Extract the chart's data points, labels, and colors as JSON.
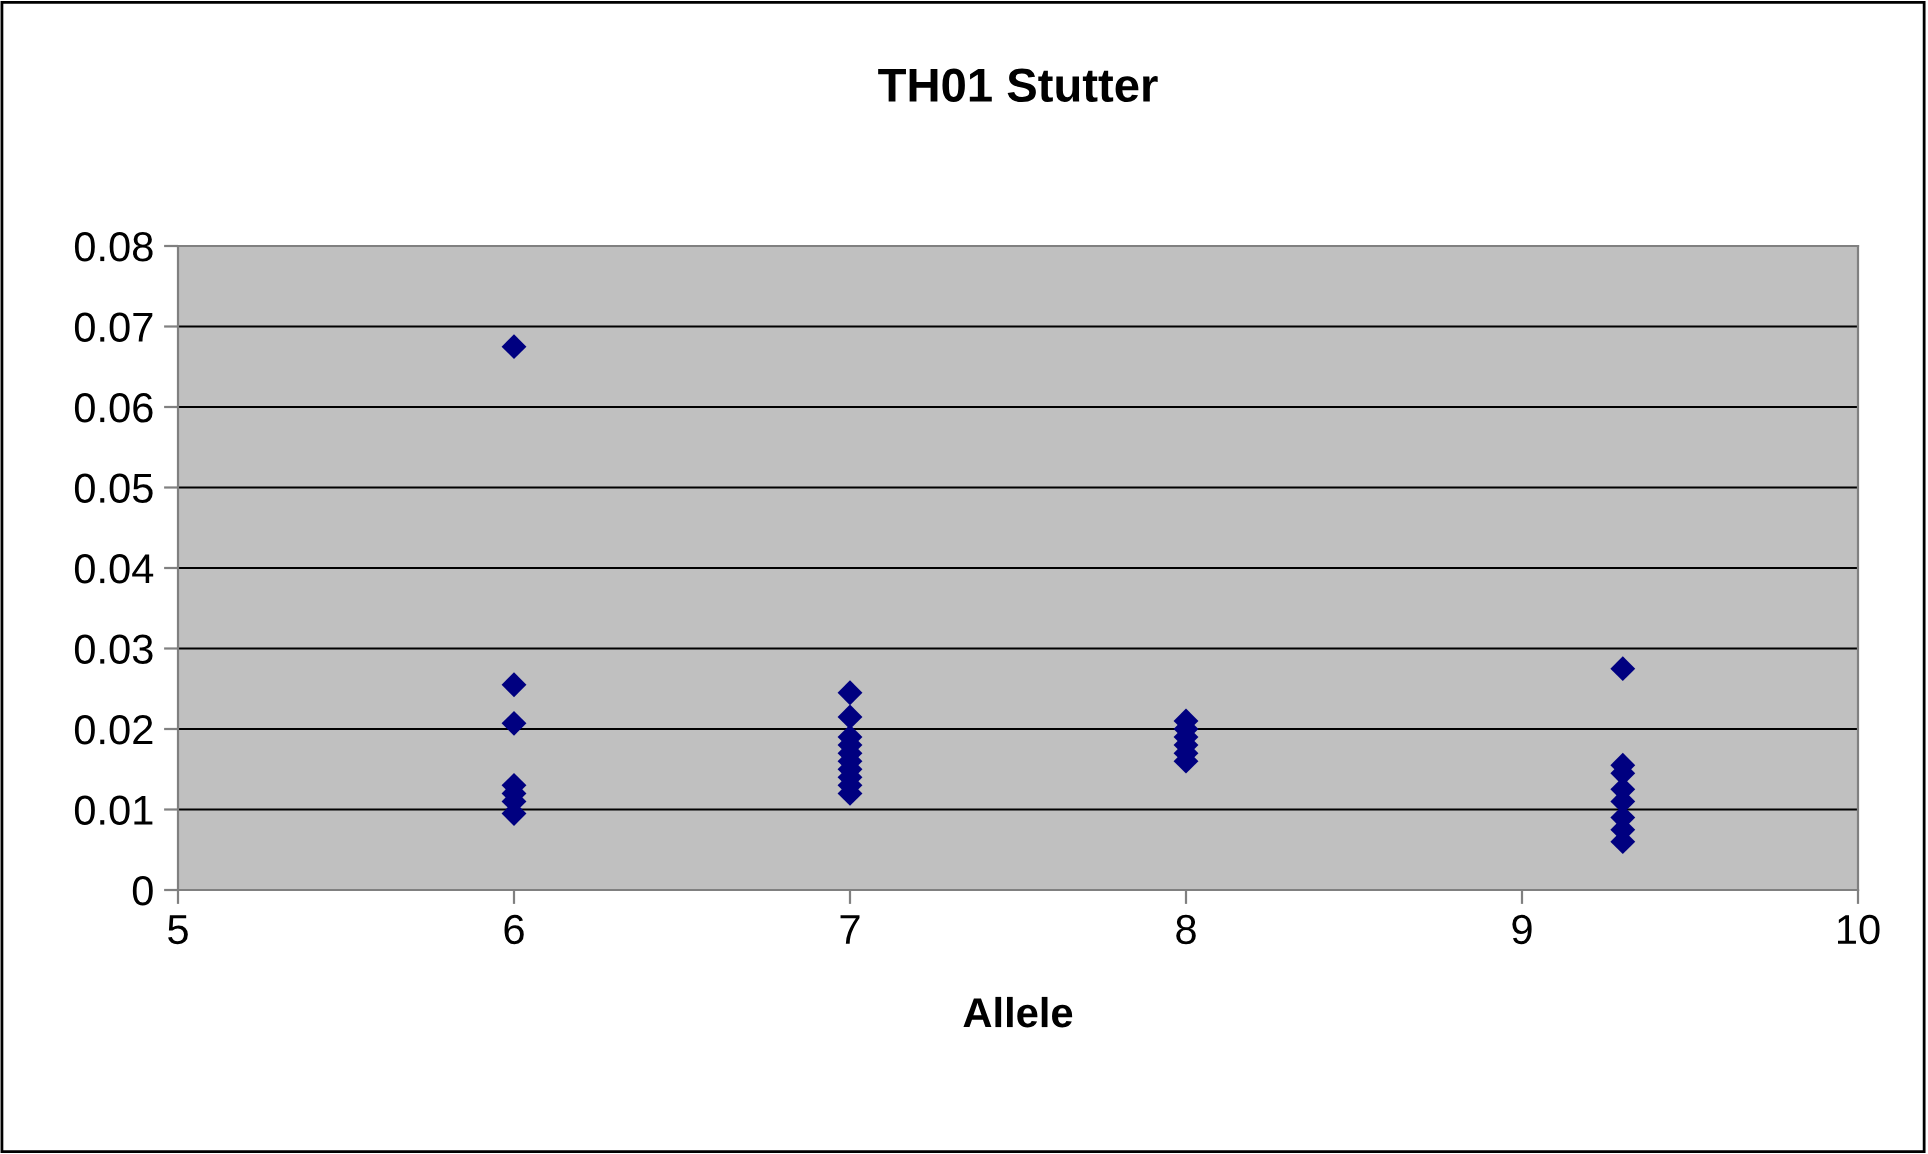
{
  "chart_data": {
    "type": "scatter",
    "title": "TH01 Stutter",
    "xlabel": "Allele",
    "x": [
      6,
      6,
      6,
      6,
      6,
      6,
      6,
      7,
      7,
      7,
      7,
      7,
      7,
      7,
      7,
      7,
      7,
      8,
      8,
      8,
      8,
      8,
      8,
      9.3,
      9.3,
      9.3,
      9.3,
      9.3,
      9.3,
      9.3,
      9.3
    ],
    "series": [
      {
        "color": "#000080",
        "values": [
          0.0675,
          0.0255,
          0.0207,
          0.013,
          0.012,
          0.011,
          0.0095,
          0.0245,
          0.0215,
          0.019,
          0.018,
          0.017,
          0.016,
          0.015,
          0.014,
          0.013,
          0.012,
          0.021,
          0.02,
          0.019,
          0.018,
          0.017,
          0.016,
          0.0275,
          0.0155,
          0.0145,
          0.0125,
          0.011,
          0.009,
          0.0075,
          0.006
        ]
      }
    ],
    "xlim": [
      5,
      10
    ],
    "xticks": [
      5,
      6,
      7,
      8,
      9,
      10
    ],
    "ylim": [
      0,
      0.08
    ],
    "yticks": [
      0,
      0.01,
      0.02,
      0.03,
      0.04,
      0.05,
      0.06,
      0.07,
      0.08
    ],
    "grid": "y",
    "marker": "diamond"
  }
}
